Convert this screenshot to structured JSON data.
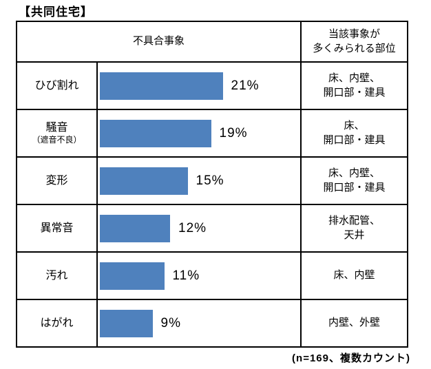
{
  "title": "【共同住宅】",
  "footnote": "(n=169、複数カウント)",
  "colors": {
    "bar": "#4F81BD",
    "border": "#000000",
    "text": "#000000"
  },
  "header": {
    "defect": "不具合事象",
    "location": [
      "当該事象が",
      "多くみられる部位"
    ]
  },
  "rows": [
    {
      "label": "ひび割れ",
      "sublabel": "",
      "percent": 21,
      "percent_label": "21%",
      "location": [
        "床、内壁、",
        "開口部・建具"
      ]
    },
    {
      "label": "騒音",
      "sublabel": "（遮音不良）",
      "percent": 19,
      "percent_label": "19%",
      "location": [
        "床、",
        "開口部・建具"
      ]
    },
    {
      "label": "変形",
      "sublabel": "",
      "percent": 15,
      "percent_label": "15%",
      "location": [
        "床、内壁、",
        "開口部・建具"
      ]
    },
    {
      "label": "異常音",
      "sublabel": "",
      "percent": 12,
      "percent_label": "12%",
      "location": [
        "排水配管、",
        "天井"
      ]
    },
    {
      "label": "汚れ",
      "sublabel": "",
      "percent": 11,
      "percent_label": "11%",
      "location": [
        "床、内壁"
      ]
    },
    {
      "label": "はがれ",
      "sublabel": "",
      "percent": 9,
      "percent_label": "9%",
      "location": [
        "内壁、外壁"
      ]
    }
  ],
  "chart_data": {
    "type": "bar",
    "orientation": "horizontal",
    "title": "【共同住宅】",
    "categories": [
      "ひび割れ",
      "騒音（遮音不良）",
      "変形",
      "異常音",
      "汚れ",
      "はがれ"
    ],
    "values": [
      21,
      19,
      15,
      12,
      11,
      9
    ],
    "value_labels": [
      "21%",
      "19%",
      "15%",
      "12%",
      "11%",
      "9%"
    ],
    "unit": "%",
    "xlabel": "",
    "ylabel": "不具合事象",
    "xlim": [
      0,
      35
    ],
    "grid": false,
    "legend": false,
    "bar_color": "#4F81BD",
    "column_headers": [
      "不具合事象",
      "当該事象が多くみられる部位"
    ],
    "locations": [
      "床、内壁、開口部・建具",
      "床、開口部・建具",
      "床、内壁、開口部・建具",
      "排水配管、天井",
      "床、内壁",
      "内壁、外壁"
    ],
    "annotations": [
      "(n=169、複数カウント)"
    ]
  }
}
